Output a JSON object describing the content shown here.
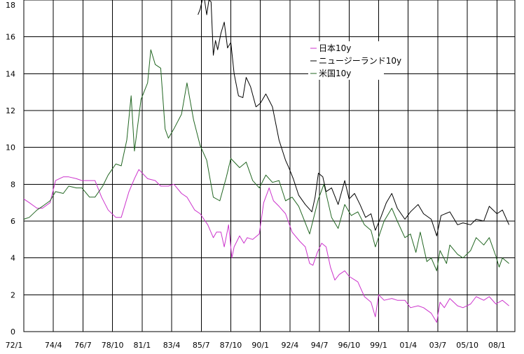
{
  "chart_data": {
    "type": "line",
    "title": "",
    "xlabel": "",
    "ylabel": "",
    "ylim": [
      0,
      18
    ],
    "y_ticks": [
      "0",
      "2",
      "4",
      "6",
      "8",
      "10",
      "12",
      "14",
      "16",
      "18"
    ],
    "x_ticks": [
      "72/1",
      "74/4",
      "76/7",
      "78/10",
      "81/1",
      "83/4",
      "85/7",
      "87/10",
      "90/1",
      "92/4",
      "94/7",
      "96/10",
      "99/1",
      "01/4",
      "03/7",
      "05/10",
      "08/1"
    ],
    "grid": true,
    "legend_position": "top-right",
    "series": [
      {
        "name": "日本10y",
        "color": "#cc33cc",
        "points": [
          [
            "1972-01",
            7.2
          ],
          [
            "1972-06",
            7.0
          ],
          [
            "1973-01",
            6.7
          ],
          [
            "1973-06",
            6.7
          ],
          [
            "1974-01",
            7.0
          ],
          [
            "1974-06",
            8.2
          ],
          [
            "1975-01",
            8.4
          ],
          [
            "1975-06",
            8.4
          ],
          [
            "1976-01",
            8.3
          ],
          [
            "1976-06",
            8.2
          ],
          [
            "1977-01",
            8.2
          ],
          [
            "1977-06",
            8.2
          ],
          [
            "1977-12",
            7.3
          ],
          [
            "1978-06",
            6.6
          ],
          [
            "1979-01",
            6.2
          ],
          [
            "1979-06",
            6.2
          ],
          [
            "1980-01",
            7.6
          ],
          [
            "1980-06",
            8.3
          ],
          [
            "1980-10",
            8.8
          ],
          [
            "1981-06",
            8.3
          ],
          [
            "1982-01",
            8.2
          ],
          [
            "1982-06",
            7.9
          ],
          [
            "1983-01",
            7.9
          ],
          [
            "1983-06",
            8.0
          ],
          [
            "1984-01",
            7.5
          ],
          [
            "1984-06",
            7.3
          ],
          [
            "1985-01",
            6.6
          ],
          [
            "1985-06",
            6.4
          ],
          [
            "1986-01",
            5.8
          ],
          [
            "1986-06",
            5.1
          ],
          [
            "1986-09",
            5.4
          ],
          [
            "1987-01",
            5.4
          ],
          [
            "1987-04",
            4.6
          ],
          [
            "1987-08",
            5.8
          ],
          [
            "1987-11",
            4.0
          ],
          [
            "1988-01",
            4.6
          ],
          [
            "1988-06",
            5.2
          ],
          [
            "1988-10",
            4.8
          ],
          [
            "1989-01",
            5.1
          ],
          [
            "1989-06",
            5.0
          ],
          [
            "1989-12",
            5.3
          ],
          [
            "1990-04",
            7.0
          ],
          [
            "1990-09",
            7.8
          ],
          [
            "1991-01",
            7.1
          ],
          [
            "1991-06",
            6.8
          ],
          [
            "1991-12",
            6.4
          ],
          [
            "1992-06",
            5.4
          ],
          [
            "1993-01",
            4.9
          ],
          [
            "1993-06",
            4.6
          ],
          [
            "1993-10",
            3.7
          ],
          [
            "1994-01",
            3.6
          ],
          [
            "1994-05",
            4.3
          ],
          [
            "1994-09",
            4.8
          ],
          [
            "1995-01",
            4.6
          ],
          [
            "1995-05",
            3.5
          ],
          [
            "1995-09",
            2.8
          ],
          [
            "1996-01",
            3.1
          ],
          [
            "1996-06",
            3.3
          ],
          [
            "1996-10",
            3.0
          ],
          [
            "1997-06",
            2.7
          ],
          [
            "1997-12",
            1.9
          ],
          [
            "1998-06",
            1.6
          ],
          [
            "1998-10",
            0.8
          ],
          [
            "1999-01",
            2.0
          ],
          [
            "1999-06",
            1.7
          ],
          [
            "2000-01",
            1.8
          ],
          [
            "2000-06",
            1.7
          ],
          [
            "2001-01",
            1.7
          ],
          [
            "2001-06",
            1.3
          ],
          [
            "2002-01",
            1.4
          ],
          [
            "2002-06",
            1.3
          ],
          [
            "2003-01",
            1.0
          ],
          [
            "2003-06",
            0.5
          ],
          [
            "2003-09",
            1.6
          ],
          [
            "2004-01",
            1.3
          ],
          [
            "2004-06",
            1.8
          ],
          [
            "2005-01",
            1.4
          ],
          [
            "2005-06",
            1.3
          ],
          [
            "2006-01",
            1.5
          ],
          [
            "2006-06",
            1.9
          ],
          [
            "2007-01",
            1.7
          ],
          [
            "2007-06",
            1.9
          ],
          [
            "2007-12",
            1.5
          ],
          [
            "2008-06",
            1.7
          ],
          [
            "2008-12",
            1.4
          ]
        ]
      },
      {
        "name": "ニュージーランド10y",
        "color": "#000000",
        "points": [
          [
            "1985-04",
            17.2
          ],
          [
            "1985-06",
            17.5
          ],
          [
            "1985-08",
            19.0
          ],
          [
            "1985-10",
            18.6
          ],
          [
            "1985-12",
            17.2
          ],
          [
            "1986-02",
            18.7
          ],
          [
            "1986-04",
            17.9
          ],
          [
            "1986-06",
            15.0
          ],
          [
            "1986-08",
            15.8
          ],
          [
            "1986-10",
            15.3
          ],
          [
            "1987-01",
            16.2
          ],
          [
            "1987-04",
            16.8
          ],
          [
            "1987-07",
            15.4
          ],
          [
            "1987-10",
            15.7
          ],
          [
            "1988-01",
            14.0
          ],
          [
            "1988-05",
            12.8
          ],
          [
            "1988-09",
            12.7
          ],
          [
            "1988-12",
            13.8
          ],
          [
            "1989-04",
            13.3
          ],
          [
            "1989-09",
            12.2
          ],
          [
            "1990-01",
            12.4
          ],
          [
            "1990-06",
            12.9
          ],
          [
            "1990-12",
            12.2
          ],
          [
            "1991-06",
            10.4
          ],
          [
            "1991-12",
            9.3
          ],
          [
            "1992-03",
            8.9
          ],
          [
            "1992-07",
            8.3
          ],
          [
            "1992-12",
            7.4
          ],
          [
            "1993-06",
            6.9
          ],
          [
            "1993-12",
            6.5
          ],
          [
            "1994-03",
            7.3
          ],
          [
            "1994-06",
            8.6
          ],
          [
            "1994-10",
            8.4
          ],
          [
            "1995-01",
            7.6
          ],
          [
            "1995-06",
            7.8
          ],
          [
            "1995-12",
            6.9
          ],
          [
            "1996-06",
            8.2
          ],
          [
            "1996-10",
            7.2
          ],
          [
            "1997-03",
            7.5
          ],
          [
            "1997-08",
            6.9
          ],
          [
            "1998-01",
            6.2
          ],
          [
            "1998-06",
            6.4
          ],
          [
            "1998-10",
            5.5
          ],
          [
            "1999-03",
            6.2
          ],
          [
            "1999-08",
            7.0
          ],
          [
            "2000-01",
            7.5
          ],
          [
            "2000-06",
            6.7
          ],
          [
            "2001-01",
            6.1
          ],
          [
            "2001-06",
            6.5
          ],
          [
            "2002-01",
            6.9
          ],
          [
            "2002-06",
            6.4
          ],
          [
            "2003-01",
            6.1
          ],
          [
            "2003-06",
            5.2
          ],
          [
            "2003-10",
            6.3
          ],
          [
            "2004-06",
            6.5
          ],
          [
            "2005-01",
            5.8
          ],
          [
            "2005-06",
            5.9
          ],
          [
            "2006-01",
            5.8
          ],
          [
            "2006-06",
            6.1
          ],
          [
            "2007-01",
            6.0
          ],
          [
            "2007-06",
            6.8
          ],
          [
            "2008-01",
            6.4
          ],
          [
            "2008-06",
            6.6
          ],
          [
            "2008-12",
            5.8
          ]
        ]
      },
      {
        "name": "米国10y",
        "color": "#226622",
        "points": [
          [
            "1972-01",
            6.1
          ],
          [
            "1972-06",
            6.2
          ],
          [
            "1973-01",
            6.6
          ],
          [
            "1973-06",
            6.8
          ],
          [
            "1974-01",
            7.1
          ],
          [
            "1974-06",
            7.6
          ],
          [
            "1975-01",
            7.5
          ],
          [
            "1975-06",
            7.9
          ],
          [
            "1976-01",
            7.8
          ],
          [
            "1976-06",
            7.8
          ],
          [
            "1977-01",
            7.3
          ],
          [
            "1977-06",
            7.3
          ],
          [
            "1978-01",
            7.9
          ],
          [
            "1978-06",
            8.5
          ],
          [
            "1979-01",
            9.1
          ],
          [
            "1979-06",
            9.0
          ],
          [
            "1979-11",
            10.4
          ],
          [
            "1980-03",
            12.8
          ],
          [
            "1980-06",
            9.8
          ],
          [
            "1980-12",
            12.6
          ],
          [
            "1981-06",
            13.5
          ],
          [
            "1981-09",
            15.3
          ],
          [
            "1982-01",
            14.5
          ],
          [
            "1982-06",
            14.3
          ],
          [
            "1982-10",
            11.0
          ],
          [
            "1983-01",
            10.5
          ],
          [
            "1983-06",
            11.0
          ],
          [
            "1984-01",
            11.8
          ],
          [
            "1984-06",
            13.5
          ],
          [
            "1984-12",
            11.5
          ],
          [
            "1985-06",
            10.1
          ],
          [
            "1985-12",
            9.3
          ],
          [
            "1986-06",
            7.3
          ],
          [
            "1986-12",
            7.1
          ],
          [
            "1987-06",
            8.4
          ],
          [
            "1987-10",
            9.4
          ],
          [
            "1988-06",
            8.9
          ],
          [
            "1988-12",
            9.2
          ],
          [
            "1989-06",
            8.2
          ],
          [
            "1989-12",
            7.8
          ],
          [
            "1990-06",
            8.5
          ],
          [
            "1990-12",
            8.1
          ],
          [
            "1991-06",
            8.2
          ],
          [
            "1991-12",
            7.1
          ],
          [
            "1992-06",
            7.3
          ],
          [
            "1992-12",
            6.8
          ],
          [
            "1993-06",
            5.9
          ],
          [
            "1993-10",
            5.3
          ],
          [
            "1994-06",
            7.2
          ],
          [
            "1994-11",
            8.0
          ],
          [
            "1995-06",
            6.2
          ],
          [
            "1995-12",
            5.6
          ],
          [
            "1996-06",
            6.9
          ],
          [
            "1996-12",
            6.3
          ],
          [
            "1997-06",
            6.5
          ],
          [
            "1997-12",
            5.8
          ],
          [
            "1998-06",
            5.5
          ],
          [
            "1998-10",
            4.6
          ],
          [
            "1999-06",
            6.0
          ],
          [
            "2000-01",
            6.7
          ],
          [
            "2000-06",
            6.0
          ],
          [
            "2001-01",
            5.1
          ],
          [
            "2001-06",
            5.3
          ],
          [
            "2001-11",
            4.3
          ],
          [
            "2002-03",
            5.4
          ],
          [
            "2002-09",
            3.8
          ],
          [
            "2003-01",
            4.0
          ],
          [
            "2003-06",
            3.3
          ],
          [
            "2003-09",
            4.4
          ],
          [
            "2004-03",
            3.7
          ],
          [
            "2004-06",
            4.7
          ],
          [
            "2005-01",
            4.2
          ],
          [
            "2005-06",
            4.0
          ],
          [
            "2006-01",
            4.4
          ],
          [
            "2006-06",
            5.1
          ],
          [
            "2007-01",
            4.7
          ],
          [
            "2007-06",
            5.1
          ],
          [
            "2007-12",
            4.1
          ],
          [
            "2008-03",
            3.5
          ],
          [
            "2008-06",
            4.0
          ],
          [
            "2008-12",
            3.7
          ]
        ]
      }
    ]
  }
}
